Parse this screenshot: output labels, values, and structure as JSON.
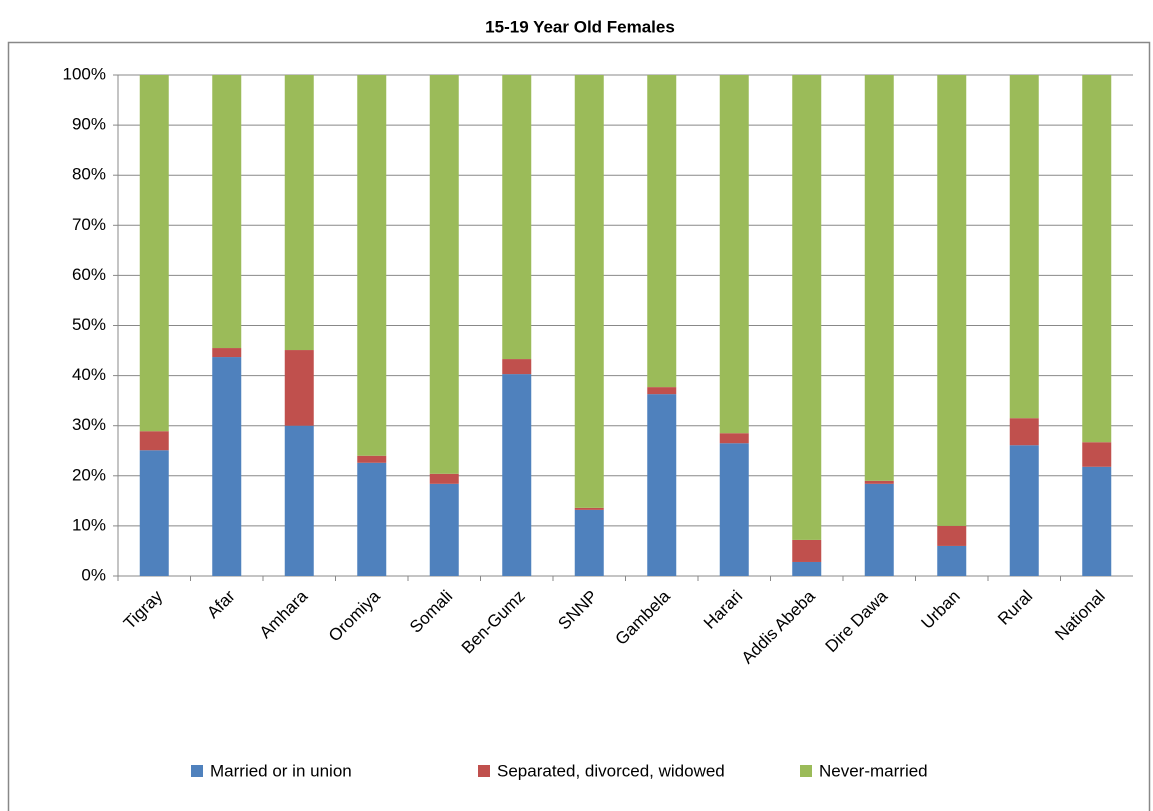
{
  "chart_data": {
    "type": "stacked_bar",
    "title": "15-19 Year Old Females",
    "categories": [
      "Tigray",
      "Afar",
      "Amhara",
      "Oromiya",
      "Somali",
      "Ben-Gumz",
      "SNNP",
      "Gambela",
      "Harari",
      "Addis Abeba",
      "Dire Dawa",
      "Urban",
      "Rural",
      "National"
    ],
    "series": [
      {
        "name": "Married or in union",
        "color": "#4f81bd",
        "values": [
          25.1,
          43.7,
          30,
          22.6,
          18.4,
          40.3,
          13.2,
          36.3,
          26.5,
          2.8,
          18.4,
          6,
          26.1,
          21.8
        ]
      },
      {
        "name": "Separated, divorced, widowed",
        "color": "#c0504d",
        "values": [
          3.8,
          1.8,
          15.1,
          1.4,
          2,
          3,
          0.4,
          1.4,
          2,
          4.4,
          0.6,
          4,
          5.4,
          4.9
        ]
      },
      {
        "name": "Never-married",
        "color": "#9bbb59",
        "values": [
          71.1,
          54.5,
          54.9,
          76,
          79.6,
          56.7,
          86.4,
          62.3,
          71.5,
          92.8,
          81,
          90,
          68.5,
          73.3
        ]
      }
    ],
    "ylim": [
      0,
      100
    ],
    "yticks": [
      {
        "value": 0,
        "label": "0%"
      },
      {
        "value": 10,
        "label": "10%"
      },
      {
        "value": 20,
        "label": "20%"
      },
      {
        "value": 30,
        "label": "30%"
      },
      {
        "value": 40,
        "label": "40%"
      },
      {
        "value": 50,
        "label": "50%"
      },
      {
        "value": 60,
        "label": "60%"
      },
      {
        "value": 70,
        "label": "70%"
      },
      {
        "value": 80,
        "label": "80%"
      },
      {
        "value": 90,
        "label": "90%"
      },
      {
        "value": 100,
        "label": "100%"
      }
    ],
    "grid": true,
    "legend": "bottom"
  }
}
